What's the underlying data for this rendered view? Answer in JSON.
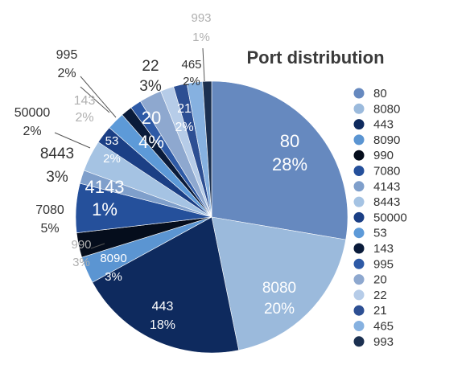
{
  "chart_data": {
    "type": "pie",
    "title": "Port distribution",
    "legend_placement": "right",
    "slices": [
      {
        "label": "80",
        "percent_label": "28%",
        "value": 28,
        "color": "#6689bf"
      },
      {
        "label": "8080",
        "percent_label": "20%",
        "value": 20,
        "color": "#9bbadc"
      },
      {
        "label": "443",
        "percent_label": "18%",
        "value": 18,
        "color": "#0e2a5e"
      },
      {
        "label": "8090",
        "percent_label": "3%",
        "value": 3,
        "color": "#5b95d2"
      },
      {
        "label": "990",
        "percent_label": "3%",
        "value": 3,
        "color": "#050d1c"
      },
      {
        "label": "7080",
        "percent_label": "5%",
        "value": 5,
        "color": "#25509b"
      },
      {
        "label": "4143",
        "percent_label": "1%",
        "value": 1,
        "color": "#7f9fcb"
      },
      {
        "label": "8443",
        "percent_label": "3%",
        "value": 3,
        "color": "#a5c3e3"
      },
      {
        "label": "50000",
        "percent_label": "2%",
        "value": 2,
        "color": "#1b3f85"
      },
      {
        "label": "53",
        "percent_label": "2%",
        "value": 2,
        "color": "#5d9ad8"
      },
      {
        "label": "143",
        "percent_label": "2%",
        "value": 2,
        "color": "#0a1b3a"
      },
      {
        "label": "995",
        "percent_label": "2%",
        "value": 2,
        "color": "#2e5aa6"
      },
      {
        "label": "20",
        "percent_label": "4%",
        "value": 4,
        "color": "#8ea8cf"
      },
      {
        "label": "22",
        "percent_label": "3%",
        "value": 3,
        "color": "#b6cce8"
      },
      {
        "label": "21",
        "percent_label": "2%",
        "value": 2,
        "color": "#2d4f93"
      },
      {
        "label": "465",
        "percent_label": "2%",
        "value": 2,
        "color": "#86b1e0"
      },
      {
        "label": "993",
        "percent_label": "1%",
        "value": 1,
        "color": "#1b3050"
      }
    ]
  }
}
